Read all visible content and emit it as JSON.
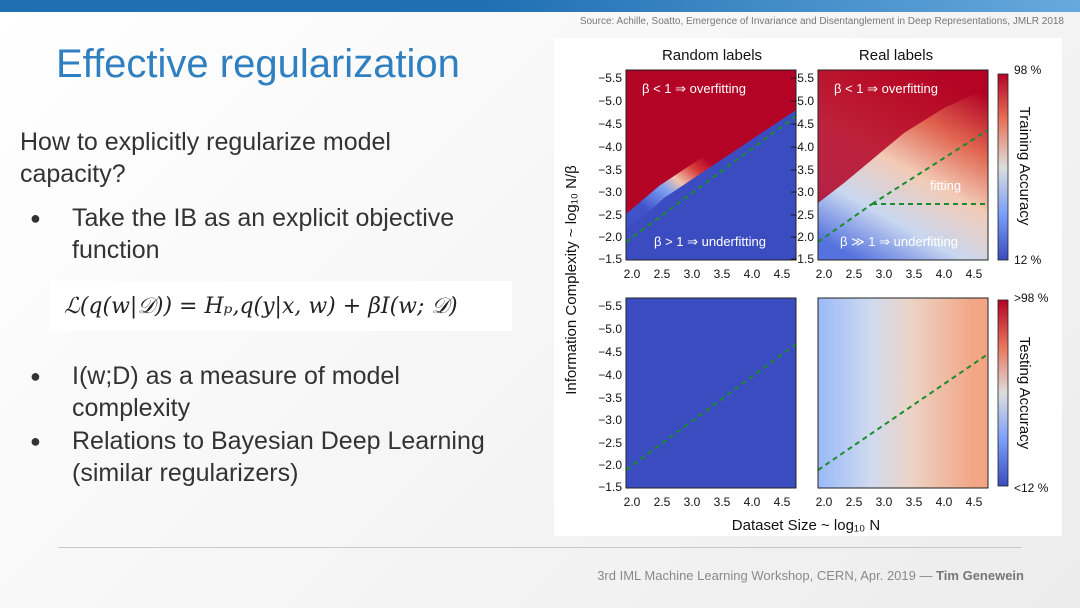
{
  "header": {
    "source": "Source: Achille, Soatto, Emergence of Invariance and Disentanglement in Deep Representations, JMLR 2018",
    "title": "Effective regularization"
  },
  "content": {
    "question": "How to explicitly regularize model capacity?",
    "bullets": [
      "Take the IB as an explicit objective function",
      "I(w;D) as a measure of model complexity",
      "Relations to Bayesian Deep Learning (similar regularizers)"
    ],
    "formula": "ℒ(q(w|𝒟)) = Hₚ,q(y|x, w) + βI(w; 𝒟)"
  },
  "figure": {
    "col_titles": [
      "Random labels",
      "Real labels"
    ],
    "ylabel": "Information Complexity ~ log₁₀ N/β",
    "xlabel": "Dataset Size ~ log₁₀ N",
    "y_ticks": [
      "−5.5",
      "−5.0",
      "−4.5",
      "−4.0",
      "−3.5",
      "−3.0",
      "−2.5",
      "−2.0",
      "−1.5"
    ],
    "x_ticks": [
      "2.0",
      "2.5",
      "3.0",
      "3.5",
      "4.0",
      "4.5"
    ],
    "annotations": {
      "overfitting": "β < 1 ⇒ overfitting",
      "underfitting": "β > 1 ⇒ underfitting",
      "underfitting_real": "β ≫ 1 ⇒ underfitting",
      "fitting": "fitting"
    },
    "colorbar_top": {
      "label": "Training Accuracy",
      "max": "98 %",
      "min": "12 %"
    },
    "colorbar_bottom": {
      "label": "Testing Accuracy",
      "max": ">98 %",
      "min": "<12 %"
    },
    "colors": {
      "high": "#b40426",
      "mid": "#dddddd",
      "low": "#3b4cc0",
      "threshold": "#1a8c2e"
    }
  },
  "footer": {
    "event": "3rd IML Machine Learning Workshop, CERN, Apr. 2019 — ",
    "author": "Tim Genewein"
  }
}
